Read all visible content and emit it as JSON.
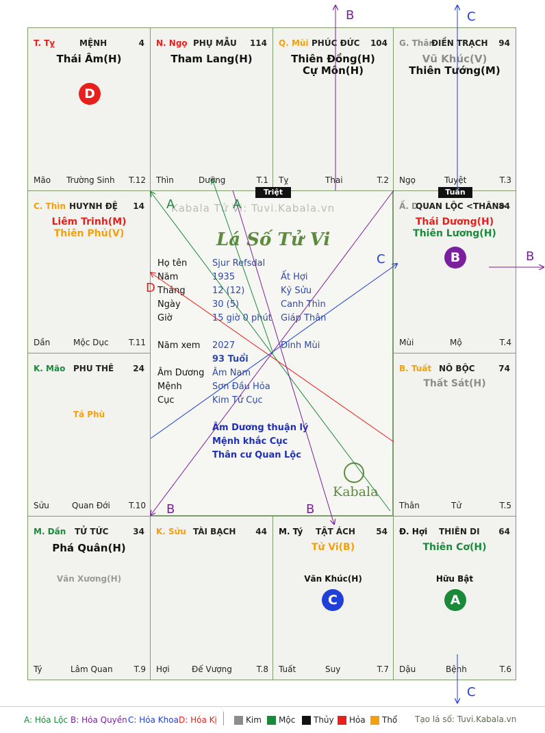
{
  "watermark": "Kabala Tử Vi: Tuvi.Kabala.vn",
  "title": "Lá Số Tử Vi",
  "logo": "Kabala",
  "triet": "Triệt",
  "tuan": "Tuần",
  "palaces": {
    "ty_top": {
      "branch": "T. Tỵ",
      "name": "MỆNH",
      "num": "4",
      "major": [
        "Thái Âm(H)"
      ],
      "bl": "Mão",
      "bm": "Trường Sinh",
      "br": "T.12"
    },
    "ngo": {
      "branch": "N. Ngọ",
      "name": "PHỤ MẪU",
      "num": "114",
      "major": [
        "Tham Lang(H)"
      ],
      "bl": "Thìn",
      "bm": "Dưỡng",
      "br": "T.1"
    },
    "mui": {
      "branch": "Q. Mùi",
      "name": "PHÚC ĐỨC",
      "num": "104",
      "major": [
        "Thiên Đồng(H)",
        "Cự Môn(H)"
      ],
      "bl": "Tỵ",
      "bm": "Thai",
      "br": "T.2"
    },
    "than": {
      "branch": "G. Thân",
      "name": "ĐIỀN TRẠCH",
      "num": "94",
      "major": [
        "Vũ Khúc(V)",
        "Thiên Tướng(M)"
      ],
      "bl": "Ngọ",
      "bm": "Tuyệt",
      "br": "T.3"
    },
    "thin": {
      "branch": "C. Thìn",
      "name": "HUYNH ĐỆ",
      "num": "14",
      "major": [
        "Liêm Trinh(M)",
        "Thiên Phủ(V)"
      ],
      "bl": "Dần",
      "bm": "Mộc Dục",
      "br": "T.11"
    },
    "dau": {
      "branch": "Ấ. D",
      "name": "QUAN LỘC <THÂN>",
      "num": "84",
      "major": [
        "Thái Dương(H)",
        "Thiên Lương(H)"
      ],
      "bl": "Mùi",
      "bm": "Mộ",
      "br": "T.4"
    },
    "mao": {
      "branch": "K. Mão",
      "name": "PHU THÊ",
      "num": "24",
      "minor": "Tả Phù",
      "bl": "Sửu",
      "bm": "Quan Đới",
      "br": "T.10"
    },
    "tuat": {
      "branch": "B. Tuất",
      "name": "NÔ BỘC",
      "num": "74",
      "major": [
        "Thất Sát(H)"
      ],
      "bl": "Thân",
      "bm": "Tử",
      "br": "T.5"
    },
    "dan": {
      "branch": "M. Dần",
      "name": "TỬ TỨC",
      "num": "34",
      "major": [
        "Phá Quân(H)"
      ],
      "minor": "Văn Xương(H)",
      "bl": "Tý",
      "bm": "Lâm Quan",
      "br": "T.9"
    },
    "suu": {
      "branch": "K. Sửu",
      "name": "TÀI BẠCH",
      "num": "44",
      "bl": "Hợi",
      "bm": "Đế Vượng",
      "br": "T.8"
    },
    "ty": {
      "branch": "M. Tý",
      "name": "TẬT ÁCH",
      "num": "54",
      "major": [
        "Tử Vi(B)"
      ],
      "minor": "Văn Khúc(H)",
      "bl": "Tuất",
      "bm": "Suy",
      "br": "T.7"
    },
    "hoi": {
      "branch": "Đ. Hợi",
      "name": "THIÊN DI",
      "num": "64",
      "major": [
        "Thiên Cơ(H)"
      ],
      "minor": "Hữu Bật",
      "bl": "Dậu",
      "bm": "Bệnh",
      "br": "T.6"
    }
  },
  "markers": {
    "d": "D",
    "b": "B",
    "c": "C",
    "a": "A"
  },
  "info": {
    "rows": [
      {
        "label": "Họ tên",
        "v1": "Sjur Refsdal",
        "v2": ""
      },
      {
        "label": "Năm",
        "v1": "1935",
        "v2": "Ất Hợi"
      },
      {
        "label": "Tháng",
        "v1": "12 (12)",
        "v2": "Kỷ Sửu"
      },
      {
        "label": "Ngày",
        "v1": "30 (5)",
        "v2": "Canh Thìn"
      },
      {
        "label": "Giờ",
        "v1": "15 giờ 0 phút",
        "v2": "Giáp Thân"
      },
      {
        "label": "Năm xem",
        "v1": "2027",
        "v2": "Đinh Mùi"
      },
      {
        "label": "",
        "v1": "93 Tuổi",
        "v2": ""
      },
      {
        "label": "Âm Dương",
        "v1": "Âm Nam",
        "v2": ""
      },
      {
        "label": "Mệnh",
        "v1": "Sơn Đầu Hỏa",
        "v2": ""
      },
      {
        "label": "Cục",
        "v1": "Kim Tứ Cục",
        "v2": ""
      }
    ],
    "notes": [
      "Âm Dương thuận lý",
      "Mệnh khắc Cục",
      "Thân cư Quan Lộc"
    ]
  },
  "legend": {
    "a": "A: Hóa Lộc",
    "b": "B: Hóa Quyền",
    "c": "C: Hóa Khoa",
    "d": "D: Hóa Kị",
    "kim": "Kim",
    "moc": "Mộc",
    "thuy": "Thủy",
    "hoa": "Hỏa",
    "tho": "Thổ",
    "site": "Tạo lá số: Tuvi.Kabala.vn"
  },
  "colors": {
    "kim": "#8c8c8c",
    "moc": "#1a8a3a",
    "thuy": "#111111",
    "hoa": "#e8201c",
    "tho": "#f2a00d",
    "hoa_loc": "#1a8a3a",
    "hoa_quyen": "#7b1f9e",
    "hoa_khoa": "#1f3fd6",
    "hoa_ki": "#e8201c"
  }
}
